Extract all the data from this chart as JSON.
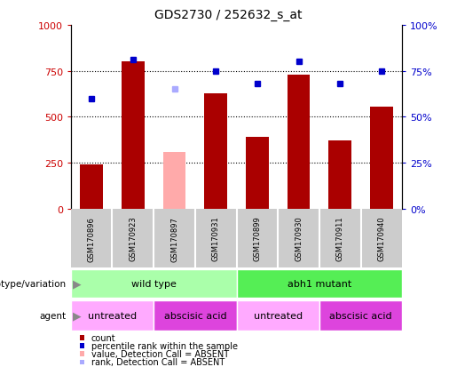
{
  "title": "GDS2730 / 252632_s_at",
  "samples": [
    "GSM170896",
    "GSM170923",
    "GSM170897",
    "GSM170931",
    "GSM170899",
    "GSM170930",
    "GSM170911",
    "GSM170940"
  ],
  "count_values": [
    240,
    800,
    310,
    630,
    390,
    730,
    370,
    555
  ],
  "count_absent": [
    false,
    false,
    true,
    false,
    false,
    false,
    false,
    false
  ],
  "percentile_values": [
    60,
    81,
    65,
    75,
    68,
    80,
    68,
    75
  ],
  "percentile_absent": [
    false,
    false,
    true,
    false,
    false,
    false,
    false,
    false
  ],
  "bar_color_normal": "#aa0000",
  "bar_color_absent": "#ffaaaa",
  "dot_color_normal": "#0000cc",
  "dot_color_absent": "#aaaaff",
  "ylim_left": [
    0,
    1000
  ],
  "ylim_right": [
    0,
    100
  ],
  "yticks_left": [
    0,
    250,
    500,
    750,
    1000
  ],
  "yticks_right": [
    0,
    25,
    50,
    75,
    100
  ],
  "ytick_labels_left": [
    "0",
    "250",
    "500",
    "750",
    "1000"
  ],
  "ytick_labels_right": [
    "0%",
    "25%",
    "50%",
    "75%",
    "100%"
  ],
  "genotype_groups": [
    {
      "label": "wild type",
      "start": 0,
      "end": 4,
      "color": "#aaffaa"
    },
    {
      "label": "abh1 mutant",
      "start": 4,
      "end": 8,
      "color": "#55ee55"
    }
  ],
  "agent_groups": [
    {
      "label": "untreated",
      "start": 0,
      "end": 2,
      "color": "#ffaaff"
    },
    {
      "label": "abscisic acid",
      "start": 2,
      "end": 4,
      "color": "#dd44dd"
    },
    {
      "label": "untreated",
      "start": 4,
      "end": 6,
      "color": "#ffaaff"
    },
    {
      "label": "abscisic acid",
      "start": 6,
      "end": 8,
      "color": "#dd44dd"
    }
  ],
  "legend_items": [
    {
      "label": "count",
      "color": "#aa0000"
    },
    {
      "label": "percentile rank within the sample",
      "color": "#0000cc"
    },
    {
      "label": "value, Detection Call = ABSENT",
      "color": "#ffaaaa"
    },
    {
      "label": "rank, Detection Call = ABSENT",
      "color": "#aaaaff"
    }
  ],
  "left_label_color": "#cc0000",
  "right_label_color": "#0000cc",
  "bg_color": "#ffffff",
  "grid_color": "#000000",
  "sample_bg_color": "#cccccc",
  "sample_sep_color": "#ffffff"
}
